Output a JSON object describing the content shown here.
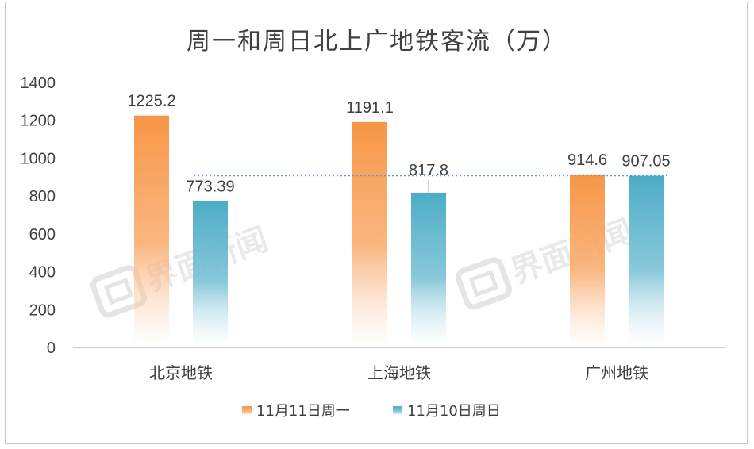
{
  "chart_data": {
    "type": "bar",
    "title": "周一和周日北上广地铁客流（万）",
    "categories": [
      "北京地铁",
      "上海地铁",
      "广州地铁"
    ],
    "series": [
      {
        "name": "11月11日周一",
        "values": [
          1225.2,
          1191.1,
          914.6
        ],
        "labels": [
          "1225.2",
          "1191.1",
          "914.6"
        ],
        "color": "#F79646"
      },
      {
        "name": "11月10日周日",
        "values": [
          773.39,
          817.8,
          907.05
        ],
        "labels": [
          "773.39",
          "817.8",
          "907.05"
        ],
        "color": "#4BACC6"
      }
    ],
    "ylim": [
      0,
      1400
    ],
    "yticks": [
      "0",
      "200",
      "400",
      "600",
      "800",
      "1000",
      "1200",
      "1400"
    ],
    "reference_line": 907.05,
    "grid": false,
    "legend_position": "bottom",
    "xlabel": "",
    "ylabel": ""
  },
  "watermark": {
    "text": "界面新闻"
  }
}
